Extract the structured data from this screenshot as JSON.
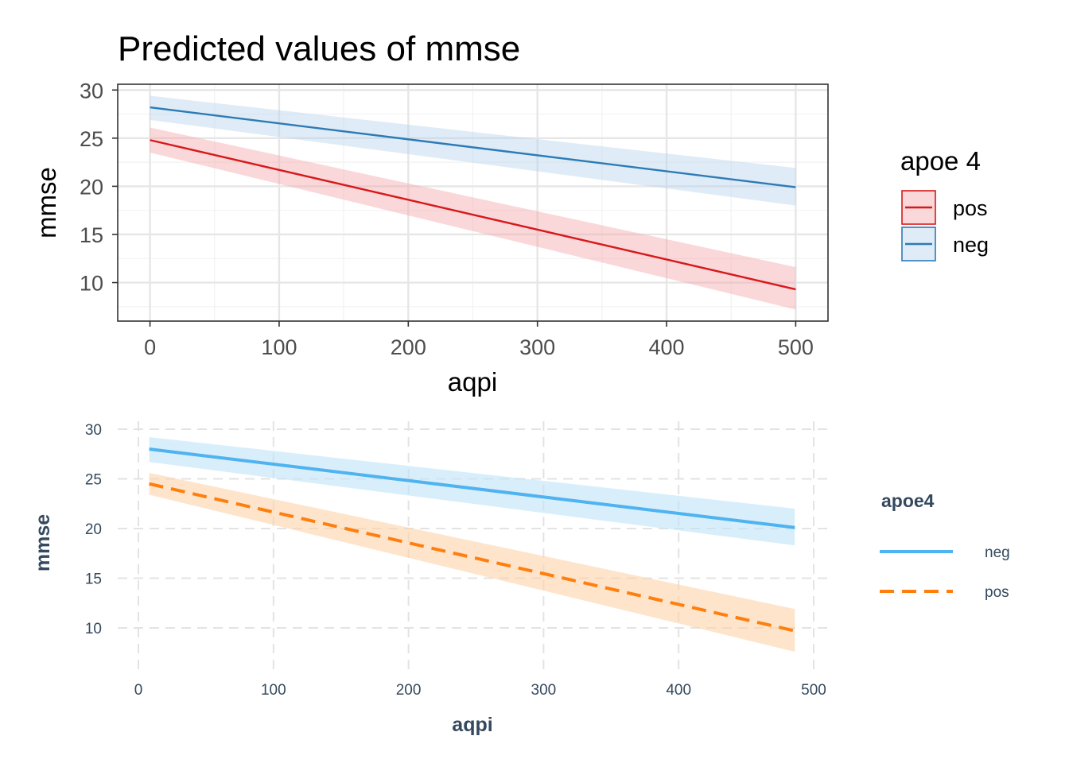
{
  "chart_data": [
    {
      "type": "line",
      "title": "Predicted values of mmse",
      "xlabel": "aqpi",
      "ylabel": "mmse",
      "xlim": [
        -25,
        525
      ],
      "ylim": [
        6,
        30.6
      ],
      "xticks": [
        0,
        100,
        200,
        300,
        400,
        500
      ],
      "yticks": [
        10,
        15,
        20,
        25,
        30
      ],
      "grid": true,
      "legend": {
        "title": "apoe 4",
        "position": "right"
      },
      "series": [
        {
          "name": "pos",
          "color": "#d7191c",
          "fill": "#f4a6a9",
          "dash": "solid",
          "x": [
            0,
            500
          ],
          "y": [
            24.8,
            9.3
          ],
          "lower": [
            23.5,
            7.2
          ],
          "upper": [
            26.1,
            11.6
          ]
        },
        {
          "name": "neg",
          "color": "#2c7bb6",
          "fill": "#b7d2ea",
          "dash": "solid",
          "x": [
            0,
            500
          ],
          "y": [
            28.2,
            19.9
          ],
          "lower": [
            26.9,
            18.0
          ],
          "upper": [
            29.4,
            21.9
          ]
        }
      ]
    },
    {
      "type": "line",
      "title": "",
      "xlabel": "aqpi",
      "ylabel": "mmse",
      "xlim": [
        -15,
        510
      ],
      "ylim": [
        5.8,
        30.5
      ],
      "xticks": [
        0,
        100,
        200,
        300,
        400,
        500
      ],
      "yticks": [
        10,
        15,
        20,
        25,
        30
      ],
      "grid": true,
      "legend": {
        "title": "apoe4",
        "position": "right"
      },
      "series": [
        {
          "name": "neg",
          "color": "#4fb3f0",
          "fill": "#bfe3f8",
          "dash": "solid",
          "x": [
            8,
            486
          ],
          "y": [
            28.0,
            20.1
          ],
          "lower": [
            26.7,
            18.3
          ],
          "upper": [
            29.2,
            22.0
          ]
        },
        {
          "name": "pos",
          "color": "#ff7f0e",
          "fill": "#fdd2a8",
          "dash": "dashed",
          "x": [
            8,
            486
          ],
          "y": [
            24.5,
            9.7
          ],
          "lower": [
            23.4,
            7.6
          ],
          "upper": [
            25.6,
            11.9
          ]
        }
      ]
    }
  ]
}
